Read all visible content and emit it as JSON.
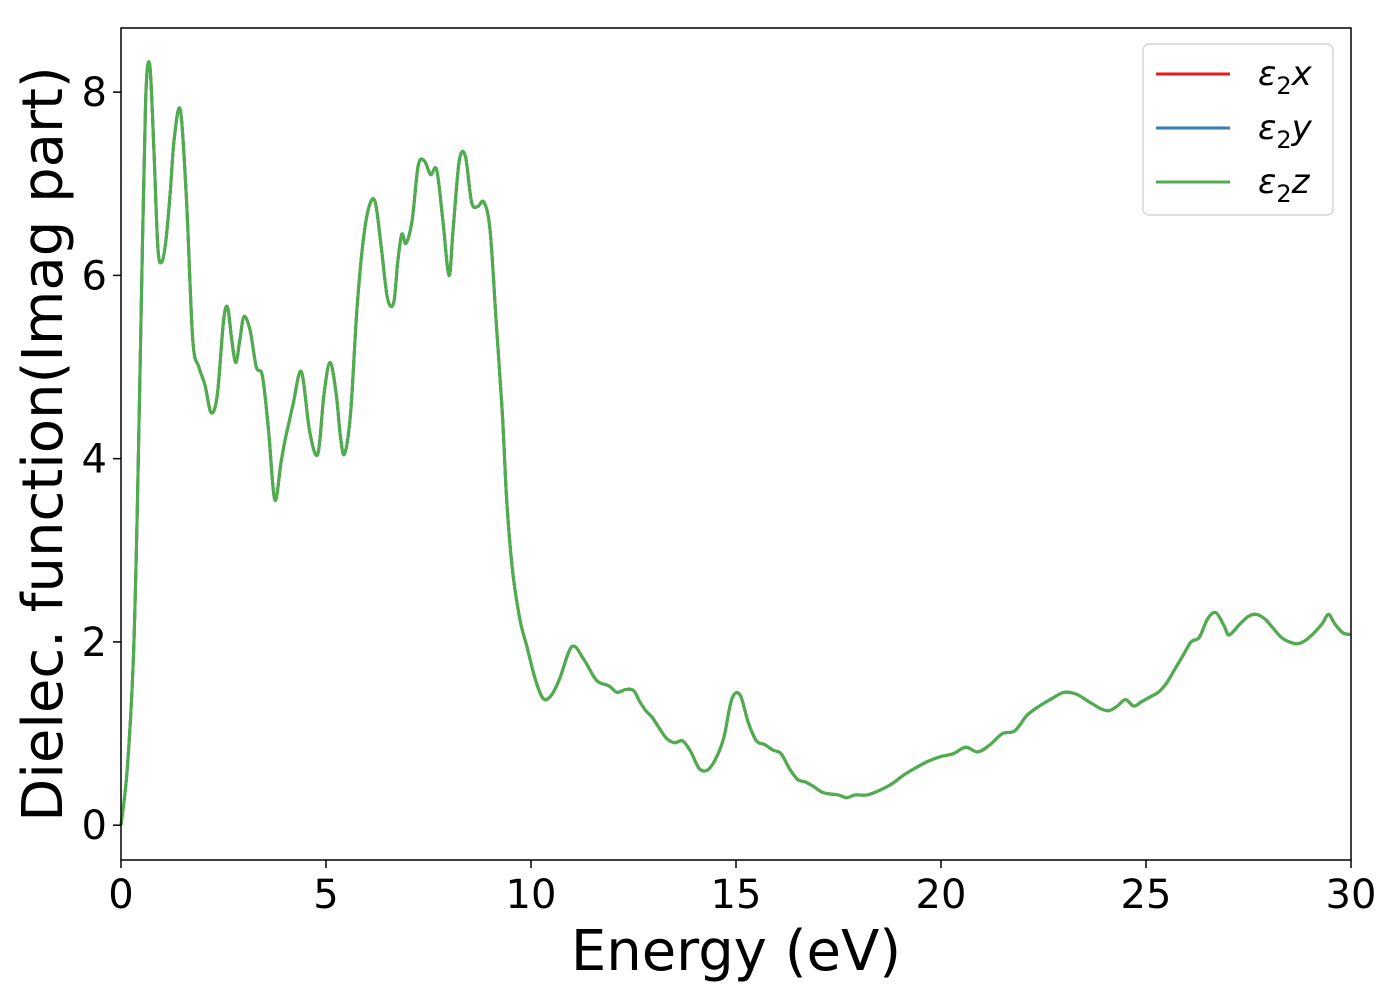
{
  "chart_data": {
    "type": "line",
    "title": "",
    "xlabel": "Energy (eV)",
    "ylabel": "Dielec. function(Imag part)",
    "xlim": [
      0,
      30
    ],
    "ylim": [
      -0.38,
      8.7
    ],
    "xticks": [
      0,
      5,
      10,
      15,
      20,
      25,
      30
    ],
    "xtick_labels": [
      "0",
      "5",
      "10",
      "15",
      "20",
      "25",
      "30"
    ],
    "yticks": [
      0,
      2,
      4,
      6,
      8
    ],
    "ytick_labels": [
      "0",
      "2",
      "4",
      "6",
      "8"
    ],
    "grid": false,
    "legend_position": "top-right",
    "series": [
      {
        "name_base": "ε",
        "name_sub": "2",
        "name_suffix": "x",
        "color": "#e41a1c"
      },
      {
        "name_base": "ε",
        "name_sub": "2",
        "name_suffix": "y",
        "color": "#377eb8"
      },
      {
        "name_base": "ε",
        "name_sub": "2",
        "name_suffix": "z",
        "color": "#4daf4a"
      }
    ],
    "x": [
      0,
      0.15,
      0.3,
      0.4,
      0.5,
      0.6,
      0.7,
      0.8,
      0.9,
      1.0,
      1.1,
      1.2,
      1.3,
      1.45,
      1.6,
      1.75,
      1.9,
      2.05,
      2.2,
      2.35,
      2.5,
      2.6,
      2.7,
      2.8,
      2.9,
      3.0,
      3.15,
      3.3,
      3.45,
      3.6,
      3.75,
      3.9,
      4.0,
      4.1,
      4.2,
      4.4,
      4.6,
      4.8,
      4.95,
      5.1,
      5.25,
      5.35,
      5.45,
      5.6,
      5.75,
      5.9,
      6.05,
      6.2,
      6.35,
      6.5,
      6.65,
      6.75,
      6.85,
      6.95,
      7.1,
      7.25,
      7.4,
      7.55,
      7.7,
      7.85,
      8.0,
      8.1,
      8.25,
      8.4,
      8.55,
      8.7,
      8.85,
      9.0,
      9.15,
      9.3,
      9.4,
      9.5,
      9.6,
      9.75,
      9.9,
      10.1,
      10.3,
      10.5,
      10.7,
      11.0,
      11.3,
      11.6,
      11.9,
      12.1,
      12.3,
      12.5,
      12.65,
      12.8,
      12.95,
      13.1,
      13.3,
      13.5,
      13.7,
      13.9,
      14.1,
      14.3,
      14.5,
      14.7,
      14.9,
      15.1,
      15.3,
      15.5,
      15.7,
      15.9,
      16.1,
      16.3,
      16.5,
      16.7,
      16.9,
      17.1,
      17.3,
      17.5,
      17.7,
      17.9,
      18.2,
      18.5,
      18.8,
      19.1,
      19.4,
      19.7,
      20.0,
      20.3,
      20.6,
      20.9,
      21.2,
      21.5,
      21.8,
      22.1,
      22.4,
      22.7,
      23.0,
      23.3,
      23.6,
      23.9,
      24.1,
      24.3,
      24.5,
      24.7,
      24.9,
      25.1,
      25.3,
      25.5,
      25.7,
      25.9,
      26.1,
      26.3,
      26.5,
      26.7,
      26.9,
      27.0,
      27.1,
      27.3,
      27.5,
      27.7,
      27.9,
      28.1,
      28.3,
      28.5,
      28.7,
      28.9,
      29.1,
      29.3,
      29.45,
      29.6,
      29.8,
      30.0
    ],
    "y": [
      0.0,
      0.6,
      1.8,
      3.5,
      5.8,
      7.9,
      8.3,
      7.4,
      6.3,
      6.15,
      6.4,
      6.9,
      7.5,
      7.8,
      6.8,
      5.3,
      5.0,
      4.8,
      4.5,
      4.7,
      5.5,
      5.65,
      5.3,
      5.05,
      5.3,
      5.55,
      5.4,
      5.0,
      4.9,
      4.3,
      3.55,
      3.95,
      4.2,
      4.4,
      4.6,
      4.95,
      4.3,
      4.05,
      4.7,
      5.05,
      4.7,
      4.25,
      4.05,
      4.5,
      5.6,
      6.35,
      6.75,
      6.8,
      6.3,
      5.75,
      5.7,
      6.15,
      6.45,
      6.35,
      6.6,
      7.2,
      7.25,
      7.1,
      7.15,
      6.6,
      6.0,
      6.5,
      7.25,
      7.3,
      6.8,
      6.75,
      6.8,
      6.5,
      5.5,
      4.5,
      3.6,
      3.0,
      2.6,
      2.2,
      1.95,
      1.6,
      1.38,
      1.42,
      1.6,
      1.95,
      1.8,
      1.58,
      1.52,
      1.45,
      1.48,
      1.47,
      1.35,
      1.25,
      1.18,
      1.08,
      0.95,
      0.9,
      0.92,
      0.8,
      0.62,
      0.6,
      0.72,
      0.95,
      1.38,
      1.42,
      1.12,
      0.92,
      0.88,
      0.82,
      0.78,
      0.62,
      0.5,
      0.47,
      0.42,
      0.36,
      0.34,
      0.33,
      0.3,
      0.33,
      0.33,
      0.38,
      0.45,
      0.55,
      0.63,
      0.7,
      0.75,
      0.78,
      0.85,
      0.8,
      0.88,
      1.0,
      1.03,
      1.2,
      1.3,
      1.38,
      1.45,
      1.43,
      1.35,
      1.27,
      1.25,
      1.3,
      1.37,
      1.3,
      1.35,
      1.4,
      1.45,
      1.55,
      1.7,
      1.85,
      2.0,
      2.05,
      2.25,
      2.32,
      2.18,
      2.08,
      2.1,
      2.2,
      2.28,
      2.3,
      2.25,
      2.15,
      2.05,
      2.0,
      1.98,
      2.02,
      2.1,
      2.2,
      2.3,
      2.2,
      2.1,
      2.08
    ]
  }
}
